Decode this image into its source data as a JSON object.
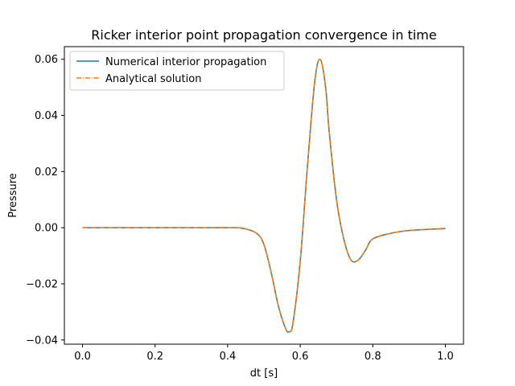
{
  "chart_data": {
    "type": "line",
    "title": "Ricker interior point propagation convergence in time",
    "xlabel": "dt [s]",
    "ylabel": "Pressure",
    "xlim": [
      -0.05,
      1.05
    ],
    "ylim": [
      -0.0415,
      0.0645
    ],
    "xticks": [
      0.0,
      0.2,
      0.4,
      0.6,
      0.8,
      1.0
    ],
    "xtick_labels": [
      "0.0",
      "0.2",
      "0.4",
      "0.6",
      "0.8",
      "1.0"
    ],
    "yticks": [
      -0.04,
      -0.02,
      0.0,
      0.02,
      0.04,
      0.06
    ],
    "ytick_labels": [
      "−0.04",
      "−0.02",
      "0.00",
      "0.02",
      "0.04",
      "0.06"
    ],
    "grid": false,
    "legend_position": "top-left",
    "x": [
      0.0,
      0.1,
      0.2,
      0.3,
      0.4,
      0.44,
      0.48,
      0.5,
      0.52,
      0.54,
      0.56,
      0.57,
      0.58,
      0.6,
      0.62,
      0.64,
      0.655,
      0.67,
      0.68,
      0.7,
      0.72,
      0.74,
      0.76,
      0.78,
      0.8,
      0.85,
      0.9,
      0.95,
      1.0
    ],
    "series": [
      {
        "name": "Numerical interior propagation",
        "color": "#1f77b4",
        "style": "solid",
        "values": [
          0.0,
          0.0,
          0.0,
          0.0,
          0.0,
          -0.0002,
          -0.002,
          -0.006,
          -0.016,
          -0.028,
          -0.036,
          -0.037,
          -0.034,
          -0.012,
          0.022,
          0.052,
          0.06,
          0.05,
          0.034,
          0.01,
          -0.004,
          -0.0115,
          -0.0115,
          -0.008,
          -0.004,
          -0.002,
          -0.001,
          -0.0006,
          -0.0003
        ]
      },
      {
        "name": "Analytical solution",
        "color": "#ff7f0e",
        "style": "dashdot",
        "values": [
          0.0,
          0.0,
          0.0,
          0.0,
          0.0,
          -0.0002,
          -0.002,
          -0.006,
          -0.016,
          -0.028,
          -0.036,
          -0.037,
          -0.034,
          -0.012,
          0.022,
          0.052,
          0.06,
          0.05,
          0.034,
          0.01,
          -0.004,
          -0.0115,
          -0.0115,
          -0.008,
          -0.004,
          -0.002,
          -0.001,
          -0.0006,
          -0.0003
        ]
      }
    ]
  }
}
